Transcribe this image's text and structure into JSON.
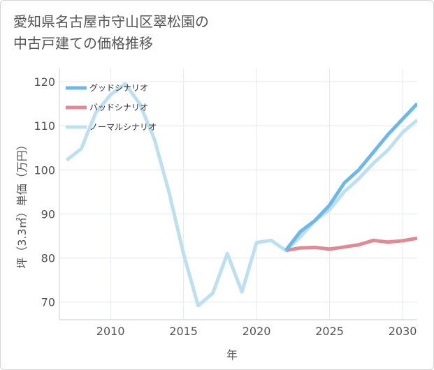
{
  "title_lines": [
    "愛知県名古屋市守山区翠松園の",
    "中古戸建ての価格推移"
  ],
  "chart_data": {
    "type": "line",
    "title": "愛知県名古屋市守山区翠松園の中古戸建ての価格推移",
    "xlabel": "年",
    "ylabel": "坪（3.3㎡）単価（万円）",
    "xlim": [
      2006.5,
      2031
    ],
    "ylim": [
      66,
      123
    ],
    "xticks": [
      2010,
      2015,
      2020,
      2025,
      2030
    ],
    "yticks": [
      70,
      80,
      90,
      100,
      110,
      120
    ],
    "grid": true,
    "legend_position": "top-left",
    "series": [
      {
        "name": "グッドシナリオ",
        "color": "#6cb8ea",
        "x": [
          2022,
          2023,
          2024,
          2025,
          2026,
          2027,
          2028,
          2029,
          2030,
          2031
        ],
        "values": [
          81.7,
          86.0,
          88.5,
          92.0,
          97.0,
          100.0,
          104.0,
          108.0,
          111.5,
          115.0
        ]
      },
      {
        "name": "バッドシナリオ",
        "color": "#e08a94",
        "x": [
          2022,
          2023,
          2024,
          2025,
          2026,
          2027,
          2028,
          2029,
          2030,
          2031
        ],
        "values": [
          81.7,
          82.3,
          82.4,
          82.0,
          82.5,
          83.0,
          84.0,
          83.6,
          83.9,
          84.5
        ]
      },
      {
        "name": "ノーマルシナリオ",
        "color": "#bde0f0",
        "x": [
          2007,
          2008,
          2009,
          2010,
          2011,
          2012,
          2013,
          2014,
          2015,
          2016,
          2017,
          2018,
          2019,
          2020,
          2021,
          2022,
          2023,
          2024,
          2025,
          2026,
          2027,
          2028,
          2029,
          2030,
          2031
        ],
        "values": [
          102.2,
          104.8,
          113.0,
          117.0,
          119.5,
          115.0,
          107.0,
          95.0,
          81.0,
          69.2,
          72.0,
          81.0,
          72.3,
          83.5,
          84.0,
          81.7,
          84.8,
          88.5,
          91.0,
          95.0,
          98.0,
          101.5,
          104.5,
          108.5,
          111.3
        ]
      }
    ]
  }
}
